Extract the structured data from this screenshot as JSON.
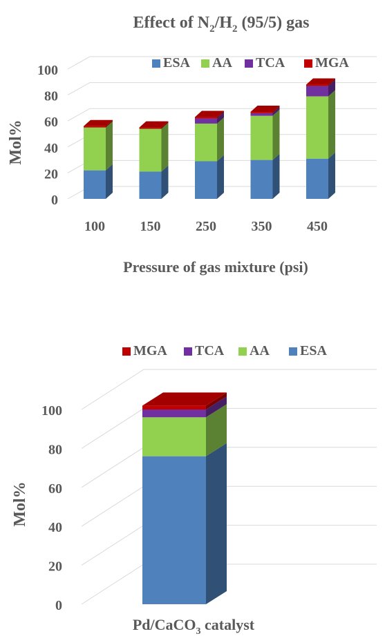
{
  "chart_data": [
    {
      "type": "bar",
      "stacked": true,
      "three_d": true,
      "title_parts": [
        "Effect of N",
        "2",
        "/H",
        "2",
        " (95/5) gas"
      ],
      "xlabel": "Pressure of gas mixture (psi)",
      "ylabel": "Mol%",
      "ylim": [
        0,
        100
      ],
      "yticks": [
        "0",
        "20",
        "40",
        "60",
        "80",
        "100"
      ],
      "categories": [
        "100",
        "150",
        "250",
        "350",
        "450"
      ],
      "series": [
        {
          "name": "ESA",
          "color": "#4f81bd",
          "values": [
            22,
            21,
            29,
            30,
            31
          ]
        },
        {
          "name": "AA",
          "color": "#92d050",
          "values": [
            33,
            33,
            29,
            34,
            48
          ]
        },
        {
          "name": "TCA",
          "color": "#7030a0",
          "values": [
            0,
            0,
            4,
            2,
            8
          ]
        },
        {
          "name": "MGA",
          "color": "#c00000",
          "values": [
            1,
            1,
            1,
            1,
            1
          ]
        }
      ],
      "legend": [
        "ESA",
        "AA",
        "TCA",
        "MGA"
      ],
      "legend_position": "top",
      "grid": true
    },
    {
      "type": "bar",
      "stacked": true,
      "three_d": true,
      "xlabel_parts": [
        "Pd/CaCO",
        "3",
        " catalyst"
      ],
      "ylabel": "Mol%",
      "ylim": [
        0,
        100
      ],
      "yticks": [
        "0",
        "20",
        "40",
        "60",
        "80",
        "100"
      ],
      "categories": [
        ""
      ],
      "series": [
        {
          "name": "ESA",
          "color": "#4f81bd",
          "values": [
            76
          ]
        },
        {
          "name": "AA",
          "color": "#92d050",
          "values": [
            20
          ]
        },
        {
          "name": "TCA",
          "color": "#7030a0",
          "values": [
            4
          ]
        },
        {
          "name": "MGA",
          "color": "#c00000",
          "values": [
            2
          ]
        }
      ],
      "legend": [
        "MGA",
        "TCA",
        "AA",
        "ESA"
      ],
      "legend_position": "top",
      "grid": true
    }
  ]
}
